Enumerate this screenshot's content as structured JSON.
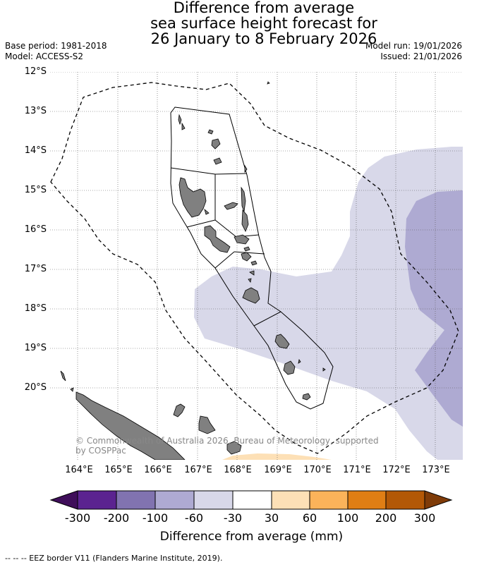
{
  "title": {
    "line1": "Difference from average",
    "line2": "sea surface height forecast for",
    "line3": "26 January to 8 February 2026"
  },
  "meta_left": {
    "base_period": "Base period: 1981-2018",
    "model": "Model: ACCESS-S2"
  },
  "meta_right": {
    "model_run": "Model run: 19/01/2026",
    "issued": "Issued: 21/01/2026"
  },
  "map": {
    "lat_labels": [
      "12°S",
      "13°S",
      "14°S",
      "15°S",
      "16°S",
      "17°S",
      "18°S",
      "19°S",
      "20°S"
    ],
    "lon_labels": [
      "164°E",
      "165°E",
      "166°E",
      "167°E",
      "168°E",
      "169°E",
      "170°E",
      "171°E",
      "172°E",
      "173°E"
    ],
    "copyright_line1": "© Commonwealth of Australia 2026, Bureau of Meteorology, supported",
    "copyright_line2": "by COSPPac",
    "anomaly_colors": {
      "light": "#d8d8e9",
      "medium": "#aeaad2",
      "positive": "#fde0b6"
    },
    "land_color": "#808080",
    "eez_border_style": "dashed"
  },
  "colorbar": {
    "labels": [
      "-300",
      "-200",
      "-100",
      "-60",
      "-30",
      "30",
      "60",
      "100",
      "200",
      "300"
    ],
    "colors": [
      "#3f0e5a",
      "#5b2390",
      "#8173b0",
      "#aeaad2",
      "#d8d8e9",
      "#ffffff",
      "#fde0b6",
      "#fbb35a",
      "#e07e14",
      "#b35806",
      "#7f3b08"
    ],
    "title": "Difference from average (mm)"
  },
  "footer": "--  --  -- EEZ border V11 (Flanders Marine Institute, 2019)."
}
